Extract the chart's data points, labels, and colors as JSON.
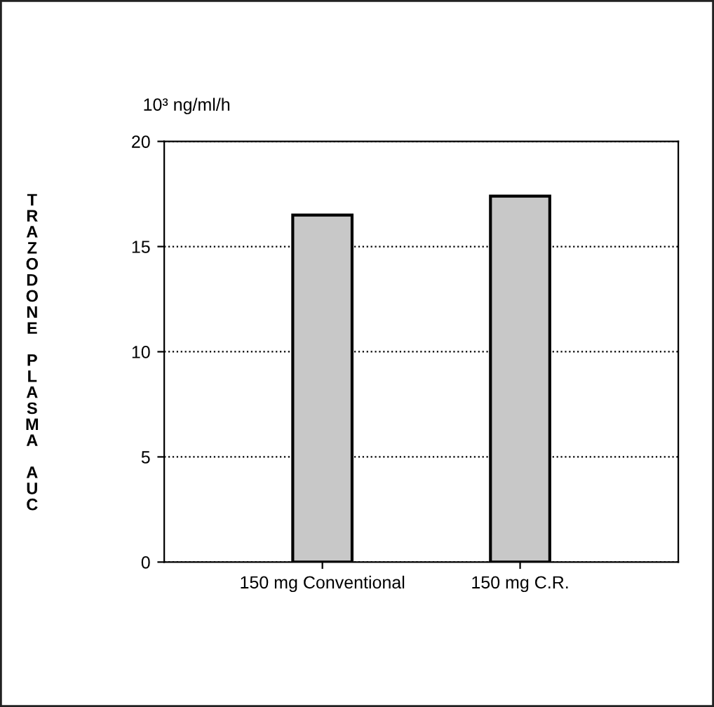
{
  "chart_data": {
    "type": "bar",
    "subtitle": "10³ ng/ml/h",
    "ylabel": "TRAZODONE PLASMA AUC",
    "categories": [
      "150 mg Conventional",
      "150 mg C.R."
    ],
    "values": [
      16.5,
      17.4
    ],
    "color": "#c8c8c8",
    "ylim": [
      0,
      20
    ],
    "yticks": [
      0,
      5,
      10,
      15,
      20
    ],
    "grid": "y",
    "line_style": "dotted"
  }
}
